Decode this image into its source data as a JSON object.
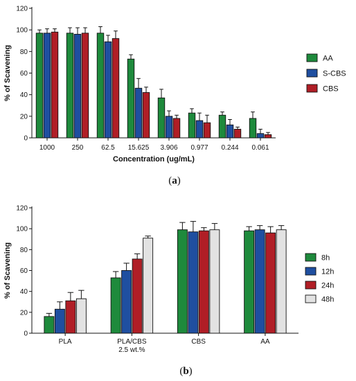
{
  "colors": {
    "green": "#1e8a3c",
    "blue": "#1f4fa0",
    "red": "#b01e26",
    "gray": "#e2e2e2"
  },
  "chart_data": [
    {
      "type": "bar",
      "panel": "(a)",
      "panel_letter": "a",
      "xlabel": "Concentration (ug/mL)",
      "ylabel": "% of Scavening",
      "ylim": [
        0,
        120
      ],
      "yticks": [
        0,
        20,
        40,
        60,
        80,
        100,
        120
      ],
      "categories": [
        "1000",
        "250",
        "62.5",
        "15.625",
        "3.906",
        "0.977",
        "0.244",
        "0.061"
      ],
      "legend_position": "right",
      "series": [
        {
          "name": "AA",
          "color": "#1e8a3c",
          "values": [
            97,
            97,
            97,
            73,
            37,
            23,
            21,
            18
          ],
          "errors": [
            3,
            5,
            6,
            4,
            8,
            4,
            3,
            6
          ]
        },
        {
          "name": "S-CBS",
          "color": "#1f4fa0",
          "values": [
            97,
            96,
            89,
            46,
            20,
            16,
            12,
            4
          ],
          "errors": [
            4,
            6,
            6,
            9,
            5,
            7,
            5,
            4
          ]
        },
        {
          "name": "CBS",
          "color": "#b01e26",
          "values": [
            98,
            97,
            92,
            42,
            18,
            14,
            8,
            3
          ],
          "errors": [
            3,
            5,
            7,
            5,
            3,
            7,
            2,
            2
          ]
        }
      ]
    },
    {
      "type": "bar",
      "panel": "(b)",
      "panel_letter": "b",
      "xlabel": "",
      "ylabel": "% of Scavening",
      "ylim": [
        0,
        120
      ],
      "yticks": [
        0,
        20,
        40,
        60,
        80,
        100,
        120
      ],
      "categories": [
        "PLA",
        "PLA/CBS\n2.5 wt.%",
        "CBS",
        "AA"
      ],
      "legend_position": "right",
      "series": [
        {
          "name": "8h",
          "color": "#1e8a3c",
          "values": [
            16,
            53,
            99,
            98
          ],
          "errors": [
            3,
            6,
            7,
            4
          ]
        },
        {
          "name": "12h",
          "color": "#1f4fa0",
          "values": [
            23,
            60,
            97,
            99
          ],
          "errors": [
            7,
            7,
            10,
            4
          ]
        },
        {
          "name": "24h",
          "color": "#b01e26",
          "values": [
            31,
            71,
            98,
            96
          ],
          "errors": [
            8,
            5,
            3,
            6
          ]
        },
        {
          "name": "48h",
          "color": "#e2e2e2",
          "values": [
            33,
            91,
            99,
            99
          ],
          "errors": [
            8,
            2,
            6,
            4
          ]
        }
      ]
    }
  ]
}
